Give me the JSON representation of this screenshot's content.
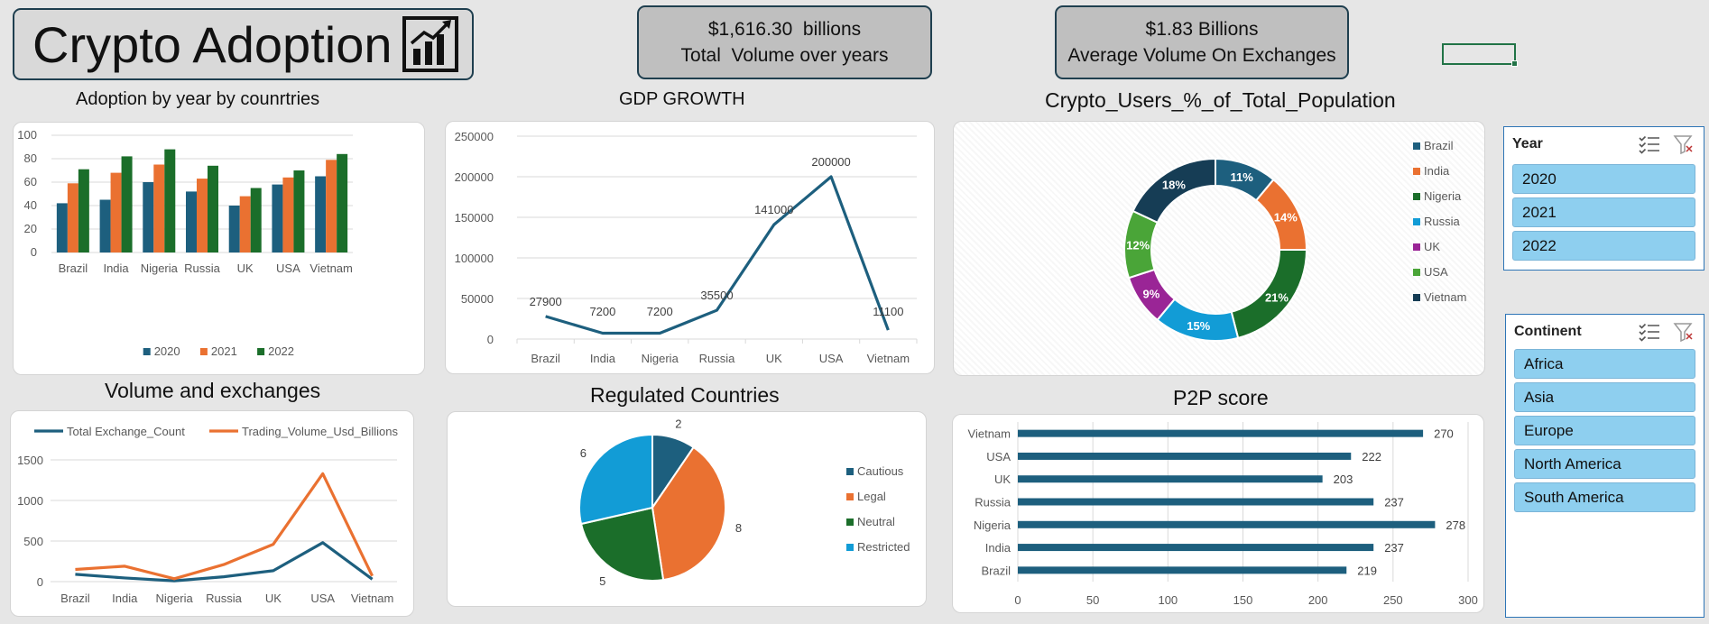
{
  "header": {
    "title": "Crypto Adoption"
  },
  "kpis": [
    {
      "value": "$1,616.30  billions",
      "label": "Total  Volume over years"
    },
    {
      "value": "$1.83 Billions",
      "label": "Average Volume On Exchanges"
    }
  ],
  "slicers": {
    "year": {
      "title": "Year",
      "items": [
        "2020",
        "2021",
        "2022"
      ]
    },
    "continent": {
      "title": "Continent",
      "items": [
        "Africa",
        "Asia",
        "Europe",
        "North America",
        "South America"
      ]
    }
  },
  "colors": {
    "blue": "#1d5f7e",
    "orange": "#ea7131",
    "green": "#1b6e2a",
    "cyan": "#129cd6",
    "purple": "#9a2596",
    "lightgreen": "#4aa538",
    "navy": "#163d55"
  },
  "chart_data": [
    {
      "id": "adoption",
      "type": "bar",
      "title": "Adoption by year by counrtries",
      "categories": [
        "Brazil",
        "India",
        "Nigeria",
        "Russia",
        "UK",
        "USA",
        "Vietnam"
      ],
      "series": [
        {
          "name": "2020",
          "values": [
            42,
            45,
            60,
            52,
            40,
            58,
            65
          ]
        },
        {
          "name": "2021",
          "values": [
            59,
            68,
            75,
            63,
            48,
            64,
            79
          ]
        },
        {
          "name": "2022",
          "values": [
            71,
            82,
            88,
            74,
            55,
            70,
            84
          ]
        }
      ],
      "ylim": [
        0,
        100
      ],
      "yticks": [
        "0",
        "20",
        "40",
        "60",
        "80",
        "100"
      ],
      "legend": "bottom",
      "grid": true
    },
    {
      "id": "gdp",
      "type": "line",
      "title": "GDP GROWTH",
      "categories": [
        "Brazil",
        "India",
        "Nigeria",
        "Russia",
        "UK",
        "USA",
        "Vietnam"
      ],
      "values": [
        27900,
        7200,
        7200,
        35500,
        141000,
        200000,
        11100
      ],
      "data_labels": [
        "27900",
        "7200",
        "7200",
        "35500",
        "141000",
        "200000",
        "11100"
      ],
      "ylim": [
        0,
        250000
      ],
      "yticks": [
        "0",
        "50000",
        "100000",
        "150000",
        "200000",
        "250000"
      ],
      "grid": true
    },
    {
      "id": "users",
      "type": "pie",
      "subtype": "donut",
      "title": "Crypto_Users_%_of_Total_Population",
      "labels": [
        "Brazil",
        "India",
        "Nigeria",
        "Russia",
        "UK",
        "USA",
        "Vietnam"
      ],
      "values": [
        11,
        14,
        21,
        15,
        9,
        12,
        18
      ],
      "data_labels": [
        "11%",
        "14%",
        "21%",
        "15%",
        "9%",
        "12%",
        "18%"
      ],
      "legend": "right"
    },
    {
      "id": "volume",
      "type": "line",
      "title": "Volume and exchanges",
      "categories": [
        "Brazil",
        "India",
        "Nigeria",
        "Russia",
        "UK",
        "USA",
        "Vietnam"
      ],
      "series": [
        {
          "name": "Total Exchange_Count",
          "values": [
            90,
            45,
            10,
            60,
            135,
            480,
            30
          ]
        },
        {
          "name": "Trading_Volume_Usd_Billions",
          "values": [
            150,
            190,
            35,
            210,
            460,
            1330,
            70
          ]
        }
      ],
      "ylim": [
        0,
        1500
      ],
      "yticks": [
        "0",
        "500",
        "1000",
        "1500"
      ],
      "legend": "top",
      "grid": true
    },
    {
      "id": "regulated",
      "type": "pie",
      "title": "Regulated Countries",
      "labels": [
        "Cautious",
        "Legal",
        "Neutral",
        "Restricted"
      ],
      "values": [
        2,
        8,
        5,
        6
      ],
      "data_labels": [
        "2",
        "8",
        "5",
        "6"
      ],
      "legend": "right"
    },
    {
      "id": "p2p",
      "type": "bar",
      "orientation": "horizontal",
      "title": "P2P score",
      "categories": [
        "Vietnam",
        "USA",
        "UK",
        "Russia",
        "Nigeria",
        "India",
        "Brazil"
      ],
      "values": [
        270,
        222,
        203,
        237,
        278,
        237,
        219
      ],
      "data_labels": [
        "270",
        "222",
        "203",
        "237",
        "278",
        "237",
        "219"
      ],
      "xlim": [
        0,
        300
      ],
      "xticks": [
        "0",
        "50",
        "100",
        "150",
        "200",
        "250",
        "300"
      ],
      "grid": true
    }
  ]
}
